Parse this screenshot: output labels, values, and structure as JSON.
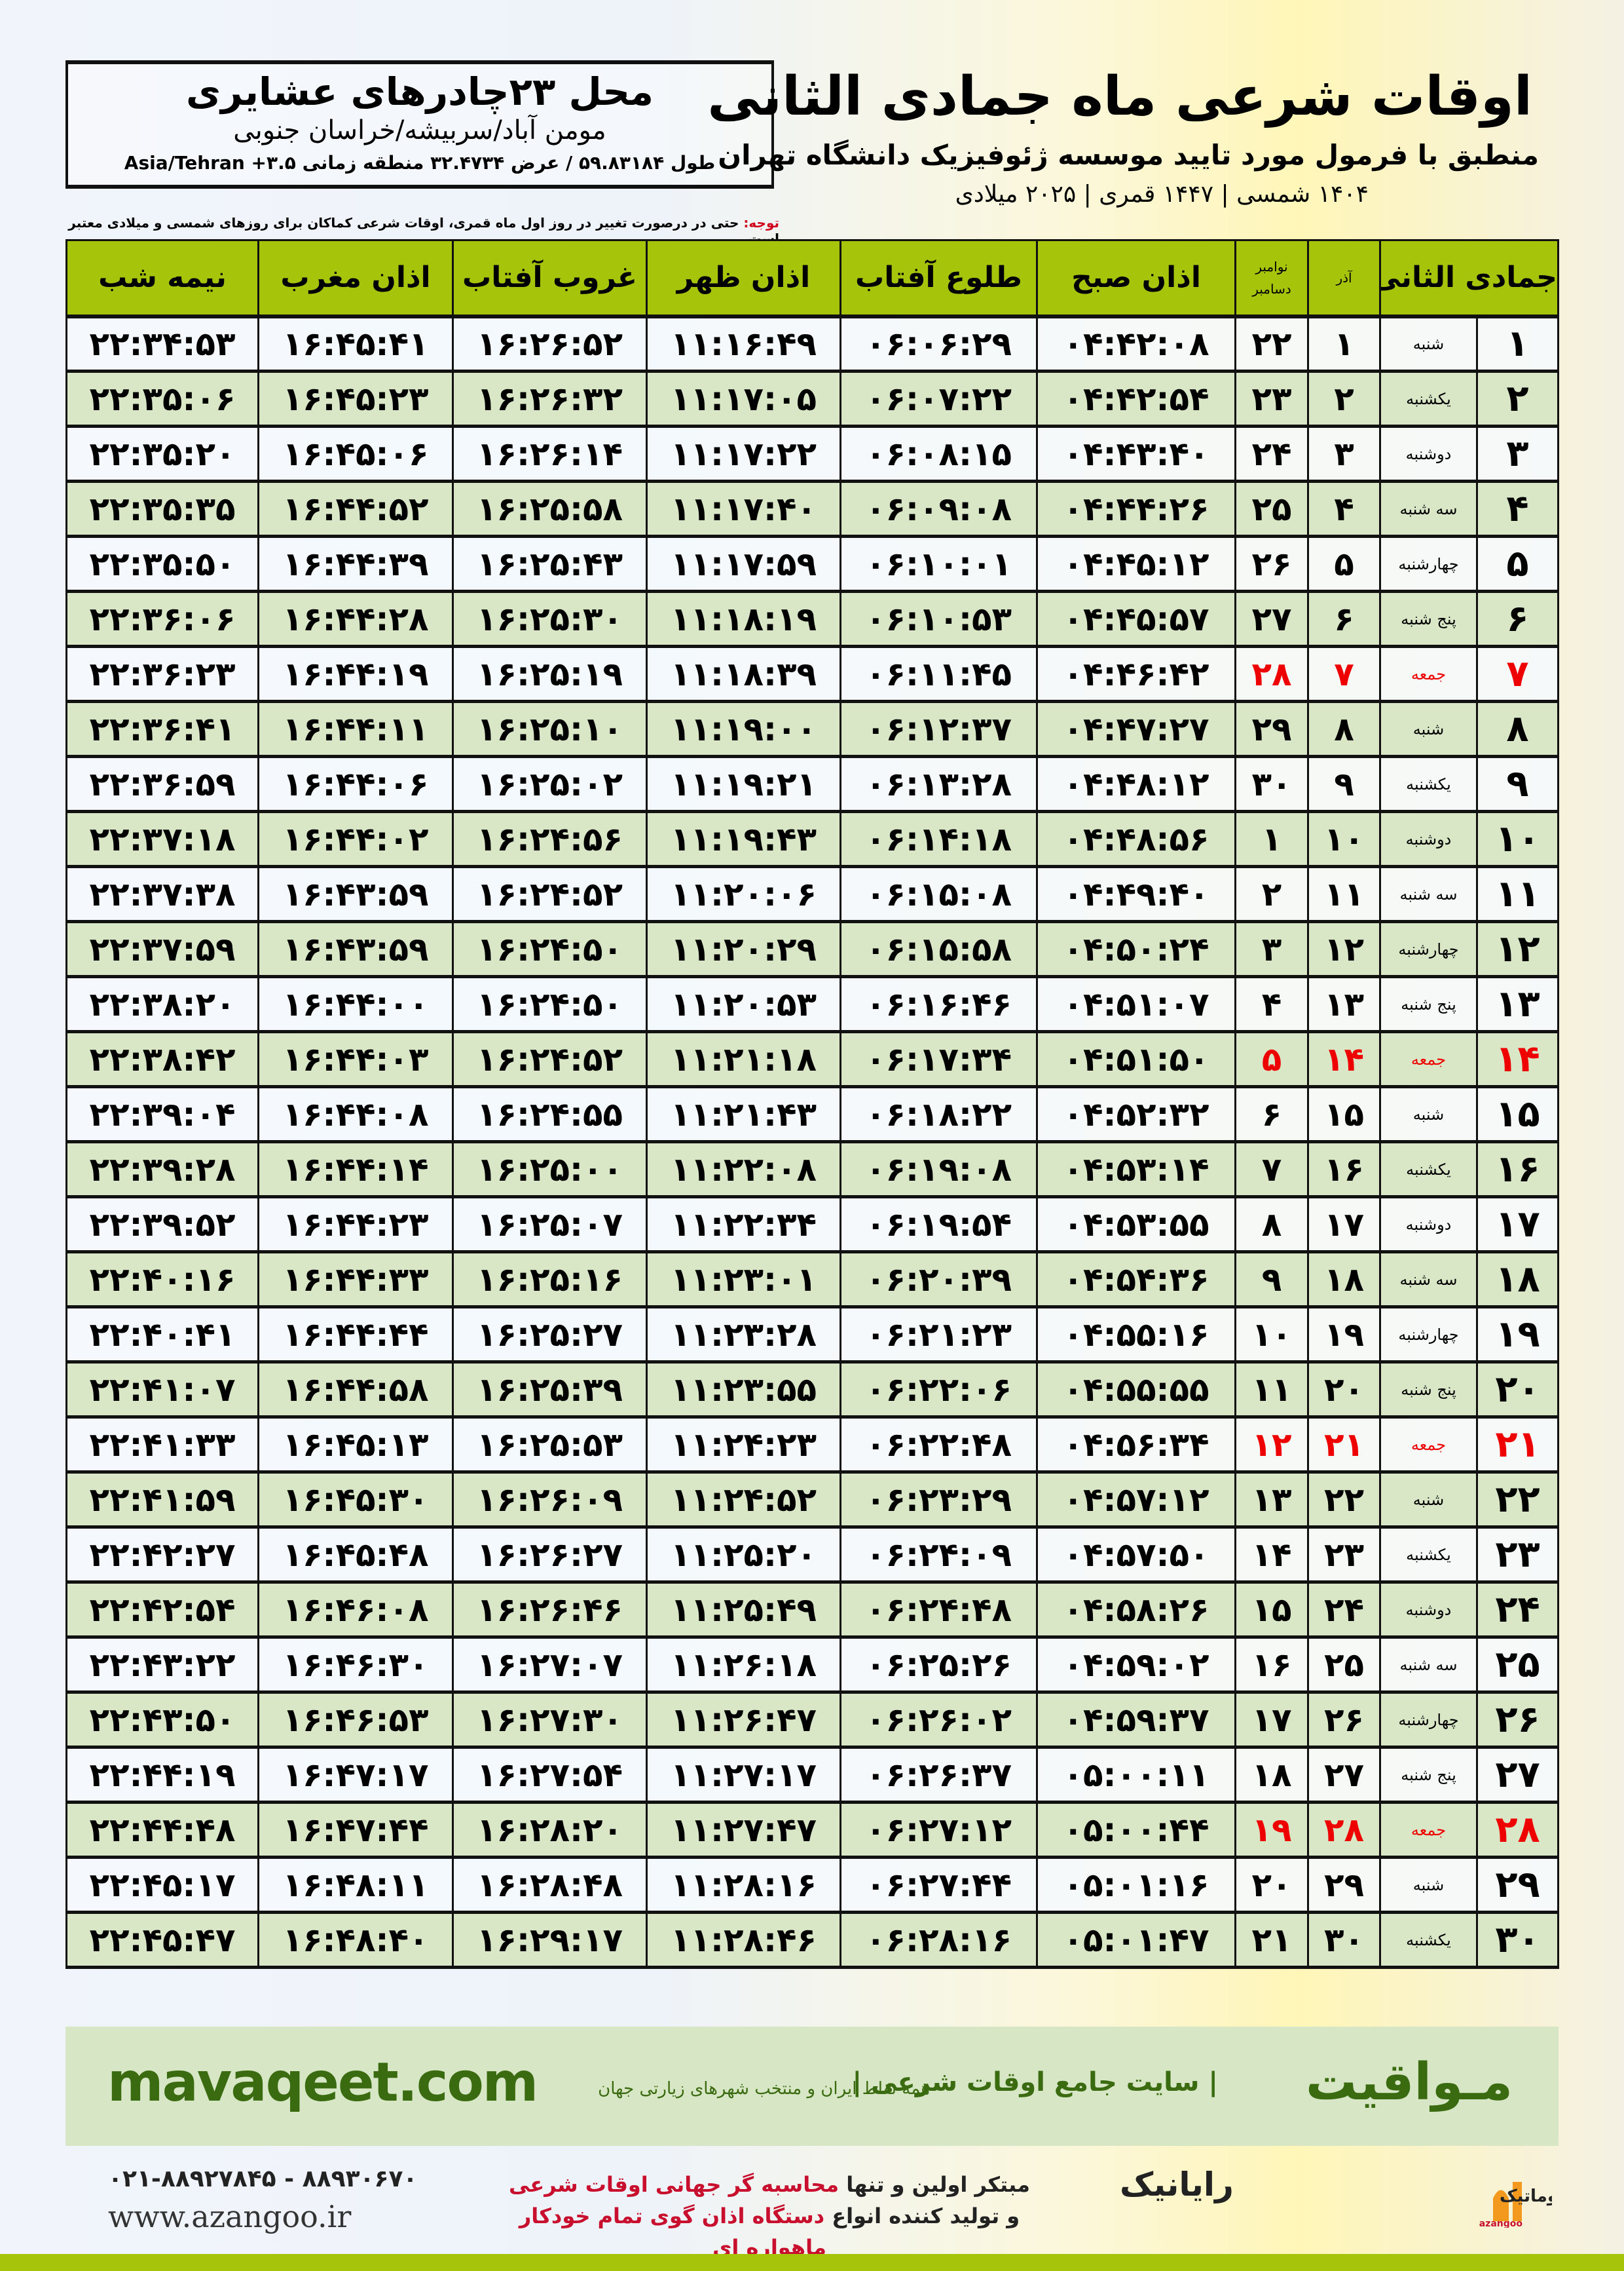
{
  "header": {
    "title": "اوقات شرعی ماه جمادی الثانی",
    "subtitle": "منطبق با فرمول مورد تایید موسسه ژئوفیزیک دانشگاه تهران",
    "dates": "۱۴۰۴ شمسی | ۱۴۴۷ قمری | ۲۰۲۵ میلادی",
    "note_label": "توجه:",
    "note_text": " حتی در درصورت تغییر در روز اول ماه قمری، اوقات شرعی کماکان برای روزهای شمسی و میلادی معتبر است."
  },
  "location": {
    "title": "محل ۲۳چادرهای عشایری",
    "path": "مومن آباد/سربیشه/خراسان جنوبی",
    "coords": "طول ۵۹.۸۳۱۸۴ / عرض ۳۲.۴۷۳۴ منطقه زمانی ۳.۵+ Asia/Tehran"
  },
  "table": {
    "headers": {
      "hijri": "جمادی الثانی",
      "azar": "آذر",
      "gregorian_top": "نوامبر",
      "gregorian_bottom": "دسامبر",
      "fajr": "اذان صبح",
      "sunrise": "طلوع آفتاب",
      "dhuhr": "اذان ظهر",
      "sunset": "غروب آفتاب",
      "maghrib": "اذان مغرب",
      "midnight": "نیمه شب"
    },
    "rows": [
      [
        "۱",
        "شنبه",
        "۱",
        "۲۲",
        "۰۴:۴۲:۰۸",
        "۰۶:۰۶:۲۹",
        "۱۱:۱۶:۴۹",
        "۱۶:۲۶:۵۲",
        "۱۶:۴۵:۴۱",
        "۲۲:۳۴:۵۳"
      ],
      [
        "۲",
        "یکشنبه",
        "۲",
        "۲۳",
        "۰۴:۴۲:۵۴",
        "۰۶:۰۷:۲۲",
        "۱۱:۱۷:۰۵",
        "۱۶:۲۶:۳۲",
        "۱۶:۴۵:۲۳",
        "۲۲:۳۵:۰۶"
      ],
      [
        "۳",
        "دوشنبه",
        "۳",
        "۲۴",
        "۰۴:۴۳:۴۰",
        "۰۶:۰۸:۱۵",
        "۱۱:۱۷:۲۲",
        "۱۶:۲۶:۱۴",
        "۱۶:۴۵:۰۶",
        "۲۲:۳۵:۲۰"
      ],
      [
        "۴",
        "سه شنبه",
        "۴",
        "۲۵",
        "۰۴:۴۴:۲۶",
        "۰۶:۰۹:۰۸",
        "۱۱:۱۷:۴۰",
        "۱۶:۲۵:۵۸",
        "۱۶:۴۴:۵۲",
        "۲۲:۳۵:۳۵"
      ],
      [
        "۵",
        "چهارشنبه",
        "۵",
        "۲۶",
        "۰۴:۴۵:۱۲",
        "۰۶:۱۰:۰۱",
        "۱۱:۱۷:۵۹",
        "۱۶:۲۵:۴۳",
        "۱۶:۴۴:۳۹",
        "۲۲:۳۵:۵۰"
      ],
      [
        "۶",
        "پنج شنبه",
        "۶",
        "۲۷",
        "۰۴:۴۵:۵۷",
        "۰۶:۱۰:۵۳",
        "۱۱:۱۸:۱۹",
        "۱۶:۲۵:۳۰",
        "۱۶:۴۴:۲۸",
        "۲۲:۳۶:۰۶"
      ],
      [
        "۷",
        "جمعه",
        "۷",
        "۲۸",
        "۰۴:۴۶:۴۲",
        "۰۶:۱۱:۴۵",
        "۱۱:۱۸:۳۹",
        "۱۶:۲۵:۱۹",
        "۱۶:۴۴:۱۹",
        "۲۲:۳۶:۲۳"
      ],
      [
        "۸",
        "شنبه",
        "۸",
        "۲۹",
        "۰۴:۴۷:۲۷",
        "۰۶:۱۲:۳۷",
        "۱۱:۱۹:۰۰",
        "۱۶:۲۵:۱۰",
        "۱۶:۴۴:۱۱",
        "۲۲:۳۶:۴۱"
      ],
      [
        "۹",
        "یکشنبه",
        "۹",
        "۳۰",
        "۰۴:۴۸:۱۲",
        "۰۶:۱۳:۲۸",
        "۱۱:۱۹:۲۱",
        "۱۶:۲۵:۰۲",
        "۱۶:۴۴:۰۶",
        "۲۲:۳۶:۵۹"
      ],
      [
        "۱۰",
        "دوشنبه",
        "۱۰",
        "۱",
        "۰۴:۴۸:۵۶",
        "۰۶:۱۴:۱۸",
        "۱۱:۱۹:۴۳",
        "۱۶:۲۴:۵۶",
        "۱۶:۴۴:۰۲",
        "۲۲:۳۷:۱۸"
      ],
      [
        "۱۱",
        "سه شنبه",
        "۱۱",
        "۲",
        "۰۴:۴۹:۴۰",
        "۰۶:۱۵:۰۸",
        "۱۱:۲۰:۰۶",
        "۱۶:۲۴:۵۲",
        "۱۶:۴۳:۵۹",
        "۲۲:۳۷:۳۸"
      ],
      [
        "۱۲",
        "چهارشنبه",
        "۱۲",
        "۳",
        "۰۴:۵۰:۲۴",
        "۰۶:۱۵:۵۸",
        "۱۱:۲۰:۲۹",
        "۱۶:۲۴:۵۰",
        "۱۶:۴۳:۵۹",
        "۲۲:۳۷:۵۹"
      ],
      [
        "۱۳",
        "پنج شنبه",
        "۱۳",
        "۴",
        "۰۴:۵۱:۰۷",
        "۰۶:۱۶:۴۶",
        "۱۱:۲۰:۵۳",
        "۱۶:۲۴:۵۰",
        "۱۶:۴۴:۰۰",
        "۲۲:۳۸:۲۰"
      ],
      [
        "۱۴",
        "جمعه",
        "۱۴",
        "۵",
        "۰۴:۵۱:۵۰",
        "۰۶:۱۷:۳۴",
        "۱۱:۲۱:۱۸",
        "۱۶:۲۴:۵۲",
        "۱۶:۴۴:۰۳",
        "۲۲:۳۸:۴۲"
      ],
      [
        "۱۵",
        "شنبه",
        "۱۵",
        "۶",
        "۰۴:۵۲:۳۲",
        "۰۶:۱۸:۲۲",
        "۱۱:۲۱:۴۳",
        "۱۶:۲۴:۵۵",
        "۱۶:۴۴:۰۸",
        "۲۲:۳۹:۰۴"
      ],
      [
        "۱۶",
        "یکشنبه",
        "۱۶",
        "۷",
        "۰۴:۵۳:۱۴",
        "۰۶:۱۹:۰۸",
        "۱۱:۲۲:۰۸",
        "۱۶:۲۵:۰۰",
        "۱۶:۴۴:۱۴",
        "۲۲:۳۹:۲۸"
      ],
      [
        "۱۷",
        "دوشنبه",
        "۱۷",
        "۸",
        "۰۴:۵۳:۵۵",
        "۰۶:۱۹:۵۴",
        "۱۱:۲۲:۳۴",
        "۱۶:۲۵:۰۷",
        "۱۶:۴۴:۲۳",
        "۲۲:۳۹:۵۲"
      ],
      [
        "۱۸",
        "سه شنبه",
        "۱۸",
        "۹",
        "۰۴:۵۴:۳۶",
        "۰۶:۲۰:۳۹",
        "۱۱:۲۳:۰۱",
        "۱۶:۲۵:۱۶",
        "۱۶:۴۴:۳۳",
        "۲۲:۴۰:۱۶"
      ],
      [
        "۱۹",
        "چهارشنبه",
        "۱۹",
        "۱۰",
        "۰۴:۵۵:۱۶",
        "۰۶:۲۱:۲۳",
        "۱۱:۲۳:۲۸",
        "۱۶:۲۵:۲۷",
        "۱۶:۴۴:۴۴",
        "۲۲:۴۰:۴۱"
      ],
      [
        "۲۰",
        "پنج شنبه",
        "۲۰",
        "۱۱",
        "۰۴:۵۵:۵۵",
        "۰۶:۲۲:۰۶",
        "۱۱:۲۳:۵۵",
        "۱۶:۲۵:۳۹",
        "۱۶:۴۴:۵۸",
        "۲۲:۴۱:۰۷"
      ],
      [
        "۲۱",
        "جمعه",
        "۲۱",
        "۱۲",
        "۰۴:۵۶:۳۴",
        "۰۶:۲۲:۴۸",
        "۱۱:۲۴:۲۳",
        "۱۶:۲۵:۵۳",
        "۱۶:۴۵:۱۳",
        "۲۲:۴۱:۳۳"
      ],
      [
        "۲۲",
        "شنبه",
        "۲۲",
        "۱۳",
        "۰۴:۵۷:۱۲",
        "۰۶:۲۳:۲۹",
        "۱۱:۲۴:۵۲",
        "۱۶:۲۶:۰۹",
        "۱۶:۴۵:۳۰",
        "۲۲:۴۱:۵۹"
      ],
      [
        "۲۳",
        "یکشنبه",
        "۲۳",
        "۱۴",
        "۰۴:۵۷:۵۰",
        "۰۶:۲۴:۰۹",
        "۱۱:۲۵:۲۰",
        "۱۶:۲۶:۲۷",
        "۱۶:۴۵:۴۸",
        "۲۲:۴۲:۲۷"
      ],
      [
        "۲۴",
        "دوشنبه",
        "۲۴",
        "۱۵",
        "۰۴:۵۸:۲۶",
        "۰۶:۲۴:۴۸",
        "۱۱:۲۵:۴۹",
        "۱۶:۲۶:۴۶",
        "۱۶:۴۶:۰۸",
        "۲۲:۴۲:۵۴"
      ],
      [
        "۲۵",
        "سه شنبه",
        "۲۵",
        "۱۶",
        "۰۴:۵۹:۰۲",
        "۰۶:۲۵:۲۶",
        "۱۱:۲۶:۱۸",
        "۱۶:۲۷:۰۷",
        "۱۶:۴۶:۳۰",
        "۲۲:۴۳:۲۲"
      ],
      [
        "۲۶",
        "چهارشنبه",
        "۲۶",
        "۱۷",
        "۰۴:۵۹:۳۷",
        "۰۶:۲۶:۰۲",
        "۱۱:۲۶:۴۷",
        "۱۶:۲۷:۳۰",
        "۱۶:۴۶:۵۳",
        "۲۲:۴۳:۵۰"
      ],
      [
        "۲۷",
        "پنج شنبه",
        "۲۷",
        "۱۸",
        "۰۵:۰۰:۱۱",
        "۰۶:۲۶:۳۷",
        "۱۱:۲۷:۱۷",
        "۱۶:۲۷:۵۴",
        "۱۶:۴۷:۱۷",
        "۲۲:۴۴:۱۹"
      ],
      [
        "۲۸",
        "جمعه",
        "۲۸",
        "۱۹",
        "۰۵:۰۰:۴۴",
        "۰۶:۲۷:۱۲",
        "۱۱:۲۷:۴۷",
        "۱۶:۲۸:۲۰",
        "۱۶:۴۷:۴۴",
        "۲۲:۴۴:۴۸"
      ],
      [
        "۲۹",
        "شنبه",
        "۲۹",
        "۲۰",
        "۰۵:۰۱:۱۶",
        "۰۶:۲۷:۴۴",
        "۱۱:۲۸:۱۶",
        "۱۶:۲۸:۴۸",
        "۱۶:۴۸:۱۱",
        "۲۲:۴۵:۱۷"
      ],
      [
        "۳۰",
        "یکشنبه",
        "۳۰",
        "۲۱",
        "۰۵:۰۱:۴۷",
        "۰۶:۲۸:۱۶",
        "۱۱:۲۸:۴۶",
        "۱۶:۲۹:۱۷",
        "۱۶:۴۸:۴۰",
        "۲۲:۴۵:۴۷"
      ]
    ],
    "holiday_weekday": "جمعه",
    "holiday_color": "#e00000"
  },
  "promo": {
    "brand": "مـواقیت",
    "tagline": "| سایت جامع اوقات شرعی |",
    "sub": "همه نقاط ایران و منتخب شهرهای زیارتی جهان",
    "url": "mavaqeet.com"
  },
  "footer": {
    "phones": "۰۲۱-۸۸۹۲۷۸۴۵ - ۸۸۹۳۰۶۷۰",
    "website": "www.azangoo.ir",
    "line1_a": "مبتکر اولین و تنها ",
    "line1_b": "محاسبه گر جهانی اوقات شرعی",
    "line2_a": "و تولید کننده انواع ",
    "line2_b": "دستگاه اذان گوی تمام خودکار ماهواره ای",
    "rayanik": "رایانیک",
    "azangoo_logo": "اذانگو اتوماتیک",
    "azangoo_latin": "azangoo"
  },
  "colors": {
    "header_green": "#a6c40a",
    "row_green": "#d9e7c6",
    "promo_green": "#d7e6c4",
    "brand_green": "#3a6b10",
    "accent_red": "#c8102e"
  }
}
